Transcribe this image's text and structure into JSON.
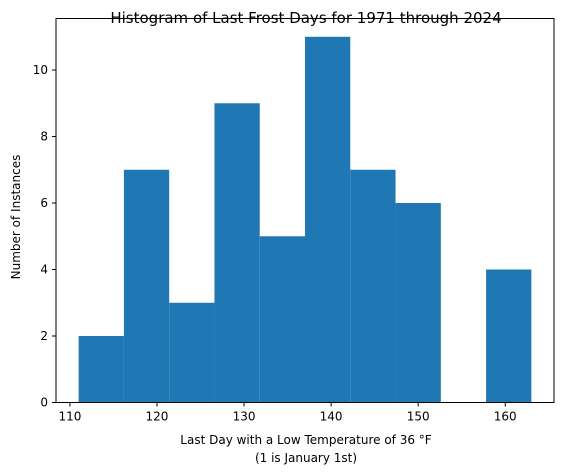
{
  "chart_data": {
    "type": "histogram",
    "title": "Histogram of Last Frost Days for 1971 through 2024",
    "xlabel_line1": "Last Day with a Low Temperature of 36 °F",
    "xlabel_line2": "(1 is January 1st)",
    "ylabel": "Number of Instances",
    "bar_color": "#1f77b4",
    "xlim": [
      108.4,
      165.6
    ],
    "ylim": [
      0,
      11.55
    ],
    "x_ticks": [
      110,
      120,
      130,
      140,
      150,
      160
    ],
    "y_ticks": [
      0,
      2,
      4,
      6,
      8,
      10
    ],
    "bins": [
      {
        "start": 111.0,
        "end": 116.2,
        "count": 2
      },
      {
        "start": 116.2,
        "end": 121.4,
        "count": 7
      },
      {
        "start": 121.4,
        "end": 126.6,
        "count": 3
      },
      {
        "start": 126.6,
        "end": 131.8,
        "count": 9
      },
      {
        "start": 131.8,
        "end": 137.0,
        "count": 5
      },
      {
        "start": 137.0,
        "end": 142.2,
        "count": 11
      },
      {
        "start": 142.2,
        "end": 147.4,
        "count": 7
      },
      {
        "start": 147.4,
        "end": 152.6,
        "count": 6
      },
      {
        "start": 152.6,
        "end": 157.8,
        "count": 0
      },
      {
        "start": 157.8,
        "end": 163.0,
        "count": 4
      }
    ],
    "grid": false,
    "legend": "none"
  }
}
